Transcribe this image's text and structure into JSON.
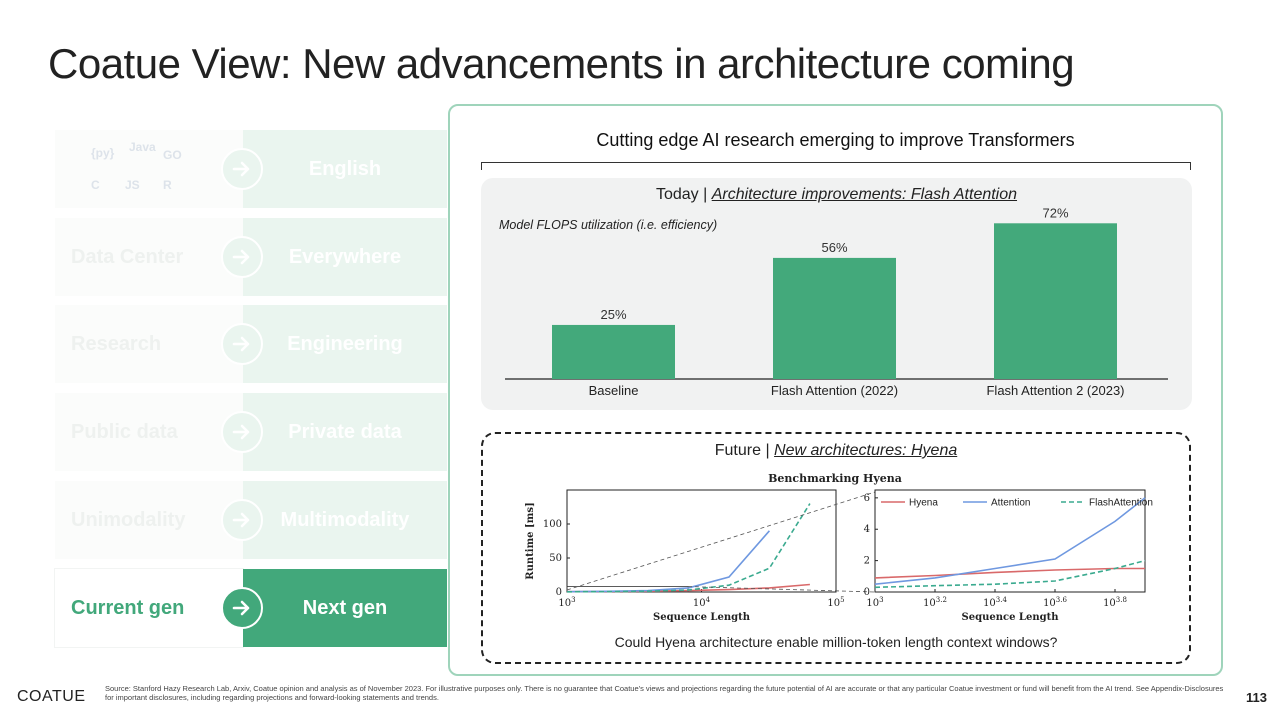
{
  "title": "Coatue View: New advancements in architecture coming",
  "left_rows": [
    {
      "left": "",
      "right": "English",
      "active": false,
      "langs": true
    },
    {
      "left": "Data Center",
      "right": "Everywhere",
      "active": false
    },
    {
      "left": "Research",
      "right": "Engineering",
      "active": false
    },
    {
      "left": "Public data",
      "right": "Private data",
      "active": false
    },
    {
      "left": "Unimodality",
      "right": "Multimodality",
      "active": false
    },
    {
      "left": "Current gen",
      "right": "Next gen",
      "active": true
    }
  ],
  "lang_icons": [
    "python-icon",
    "java-icon",
    "go-icon",
    "c-icon",
    "js-icon",
    "rust-icon"
  ],
  "lang_labels": {
    "java": "Java",
    "go": "GO",
    "c": "C",
    "js": "JS",
    "rust": "R"
  },
  "panel": {
    "title": "Cutting edge AI research emerging to improve Transformers",
    "today_prefix": "Today | ",
    "today_link": "Architecture improvements: Flash Attention",
    "today_sub": "Model FLOPS utilization (i.e. efficiency)",
    "future_prefix": "Future | ",
    "future_link": "New architectures: Hyena",
    "question": "Could Hyena architecture enable million-token length context windows?"
  },
  "chart_data": [
    {
      "type": "bar",
      "title": "Model FLOPS utilization (i.e. efficiency)",
      "categories": [
        "Baseline",
        "Flash Attention (2022)",
        "Flash Attention 2 (2023)"
      ],
      "values": [
        25,
        56,
        72
      ],
      "value_labels": [
        "25%",
        "56%",
        "72%"
      ],
      "ylim": [
        0,
        80
      ],
      "color": "#43a97b"
    },
    {
      "type": "line",
      "title": "Benchmarking Hyena",
      "xlabel": "Sequence Length",
      "ylabel": "Runtime [ms]",
      "x_log": true,
      "x_ticks": [
        "10^3",
        "10^4",
        "10^5"
      ],
      "y_ticks": [
        "0",
        "50",
        "100"
      ],
      "series": [
        {
          "name": "Hyena",
          "color": "#d9696a",
          "dash": false,
          "x": [
            1000,
            2000,
            4000,
            8000,
            16000,
            32000,
            64000
          ],
          "y": [
            0.5,
            0.8,
            1.2,
            2,
            3.5,
            6,
            11
          ]
        },
        {
          "name": "Attention",
          "color": "#6f98e0",
          "dash": false,
          "x": [
            1000,
            2000,
            4000,
            8000,
            16000,
            32000
          ],
          "y": [
            0.4,
            1,
            2,
            6,
            22,
            90
          ]
        },
        {
          "name": "FlashAttention",
          "color": "#3aaa8f",
          "dash": true,
          "x": [
            1000,
            2000,
            4000,
            8000,
            16000,
            32000,
            64000
          ],
          "y": [
            0.3,
            0.6,
            1.2,
            3,
            10,
            35,
            130
          ]
        }
      ]
    },
    {
      "type": "line",
      "title": "",
      "xlabel": "Sequence Length",
      "ylabel": "",
      "x_log": true,
      "x_ticks": [
        "10^3",
        "10^3.2",
        "10^3.4",
        "10^3.6",
        "10^3.8"
      ],
      "y_ticks": [
        "0",
        "2",
        "4",
        "6"
      ],
      "legend": [
        "Hyena",
        "Attention",
        "FlashAttention"
      ],
      "series": [
        {
          "name": "Hyena",
          "color": "#d9696a",
          "dash": false,
          "x": [
            1000,
            1585,
            2512,
            3981,
            6310,
            7943
          ],
          "y": [
            0.9,
            1.05,
            1.25,
            1.4,
            1.5,
            1.5
          ]
        },
        {
          "name": "Attention",
          "color": "#6f98e0",
          "dash": false,
          "x": [
            1000,
            1585,
            2512,
            3981,
            6310,
            7943
          ],
          "y": [
            0.5,
            0.9,
            1.5,
            2.1,
            4.5,
            6.0
          ]
        },
        {
          "name": "FlashAttention",
          "color": "#3aaa8f",
          "dash": true,
          "x": [
            1000,
            1585,
            2512,
            3981,
            6310,
            7943
          ],
          "y": [
            0.3,
            0.4,
            0.5,
            0.7,
            1.5,
            2.0
          ]
        }
      ]
    }
  ],
  "footer": {
    "logo": "COATUE",
    "note": "Source: Stanford Hazy Research Lab, Arxiv, Coatue opinion and analysis as of November 2023. For illustrative purposes only. There is no guarantee that Coatue's views and projections regarding the future potential of AI are accurate or that any particular Coatue investment or fund will benefit from the AI trend. See Appendix-Disclosures for important disclosures, including regarding projections and forward-looking statements and trends.",
    "page": "113"
  }
}
